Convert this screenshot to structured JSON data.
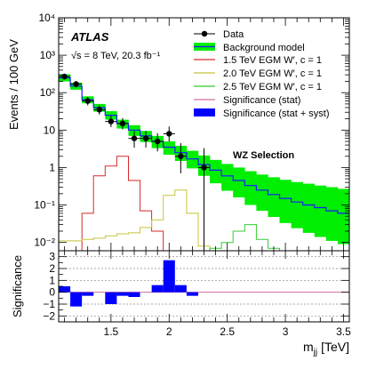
{
  "chart_data": [
    {
      "type": "histogram",
      "title": "",
      "experiment": "ATLAS",
      "energy_label": "√s = 8 TeV, 20.3 fb⁻¹",
      "selection": "WZ Selection",
      "ylabel": "Events / 100 GeV",
      "yscale": "log",
      "ylim": [
        0.006,
        10000
      ],
      "xlim": [
        1.05,
        3.55
      ],
      "ytick_labels": [
        "10⁻²",
        "10⁻¹",
        "1",
        "10",
        "10²",
        "10³",
        "10⁴"
      ],
      "legend": {
        "placement": "top-right",
        "data": "Data",
        "background": "Background model",
        "wp1": "1.5 TeV EGM W′, c = 1",
        "wp2": "2.0 TeV EGM W′, c = 1",
        "wp3": "2.5 TeV EGM W′, c = 1",
        "sig_stat": "Significance (stat)",
        "sig_syst": "Significance (stat + syst)"
      },
      "colors": {
        "background_band": "#00ee00",
        "background_line": "#1a1aff",
        "wp1": "#d42a2a",
        "wp2": "#c8c43a",
        "wp3": "#33cc33",
        "sig_stat": "#d070a0",
        "sig_syst": "#0000ff"
      },
      "bin_edges": [
        1.05,
        1.15,
        1.25,
        1.35,
        1.45,
        1.55,
        1.65,
        1.75,
        1.85,
        1.95,
        2.05,
        2.15,
        2.25,
        2.35,
        2.45,
        2.55,
        2.65,
        2.75,
        2.85,
        2.95,
        3.05,
        3.15,
        3.25,
        3.35,
        3.45,
        3.55
      ],
      "background": {
        "values": [
          250,
          150,
          65,
          40,
          25,
          15,
          10,
          7,
          5,
          3.5,
          2.5,
          1.7,
          1.2,
          0.85,
          0.6,
          0.45,
          0.33,
          0.25,
          0.19,
          0.15,
          0.12,
          0.1,
          0.085,
          0.07,
          0.06
        ],
        "band_low": [
          200,
          120,
          52,
          31,
          19,
          11,
          7,
          4.8,
          3.3,
          2.2,
          1.5,
          0.95,
          0.6,
          0.38,
          0.24,
          0.16,
          0.1,
          0.07,
          0.048,
          0.033,
          0.024,
          0.018,
          0.014,
          0.011,
          0.009
        ],
        "band_high": [
          310,
          185,
          80,
          50,
          32,
          19,
          13.5,
          9.5,
          7,
          5,
          3.8,
          2.8,
          2.1,
          1.6,
          1.25,
          1,
          0.8,
          0.65,
          0.55,
          0.47,
          0.41,
          0.37,
          0.33,
          0.3,
          0.27
        ]
      },
      "signal_1p5": [
        0,
        0,
        0.06,
        0.6,
        1.1,
        2.0,
        0.45,
        0.07,
        0.02,
        0,
        0,
        0,
        0,
        0,
        0,
        0,
        0,
        0,
        0,
        0,
        0,
        0,
        0,
        0,
        0
      ],
      "signal_2p0": [
        0.011,
        0.011,
        0.012,
        0.013,
        0.015,
        0.017,
        0.018,
        0.025,
        0.04,
        0.18,
        0.25,
        0.06,
        0.008,
        0,
        0,
        0,
        0,
        0,
        0,
        0,
        0,
        0,
        0,
        0,
        0
      ],
      "signal_2p5": [
        0,
        0,
        0,
        0,
        0,
        0,
        0,
        0,
        0,
        0,
        0,
        0,
        0,
        0.007,
        0.01,
        0.02,
        0.03,
        0.012,
        0.007,
        0,
        0,
        0,
        0,
        0,
        0
      ],
      "data_points": [
        {
          "x": 1.1,
          "y": 270,
          "lo": 225,
          "hi": 320
        },
        {
          "x": 1.2,
          "y": 170,
          "lo": 138,
          "hi": 205
        },
        {
          "x": 1.3,
          "y": 60,
          "lo": 46,
          "hi": 77
        },
        {
          "x": 1.4,
          "y": 35,
          "lo": 26,
          "hi": 46
        },
        {
          "x": 1.5,
          "y": 17,
          "lo": 12,
          "hi": 24
        },
        {
          "x": 1.6,
          "y": 15,
          "lo": 10.5,
          "hi": 21
        },
        {
          "x": 1.7,
          "y": 6,
          "lo": 3.4,
          "hi": 9.5
        },
        {
          "x": 1.8,
          "y": 6,
          "lo": 3.4,
          "hi": 9.5
        },
        {
          "x": 1.9,
          "y": 5,
          "lo": 2.7,
          "hi": 8.3
        },
        {
          "x": 2.0,
          "y": 8,
          "lo": 5,
          "hi": 12.5
        },
        {
          "x": 2.1,
          "y": 2,
          "lo": 0.7,
          "hi": 4.5
        },
        {
          "x": 2.3,
          "y": 1,
          "lo": 0.006,
          "hi": 3.3
        }
      ]
    },
    {
      "type": "bar",
      "ylabel": "Significance",
      "xlabel": "m_jj [TeV]",
      "xlabel_main": "m",
      "xlabel_sub": "jj",
      "xlabel_unit": "[TeV]",
      "xlim": [
        1.05,
        3.55
      ],
      "ylim": [
        -2.5,
        3.5
      ],
      "yticks": [
        -2,
        -1,
        0,
        1,
        2,
        3
      ],
      "ytick_labels": [
        "−2",
        "−1",
        "0",
        "1",
        "2",
        "3"
      ],
      "xticks": [
        1.5,
        2,
        2.5,
        3,
        3.5
      ],
      "xtick_labels": [
        "1.5",
        "2",
        "2.5",
        "3",
        "3.5"
      ],
      "grid": "dashed horizontal",
      "significance_syst": [
        0.5,
        -1.2,
        -0.3,
        0,
        -1.0,
        -0.3,
        -0.4,
        0,
        0.6,
        2.7,
        0.6,
        -0.3,
        0,
        0,
        0,
        0,
        0,
        0,
        0,
        0,
        0,
        0,
        0,
        0,
        0
      ]
    }
  ]
}
